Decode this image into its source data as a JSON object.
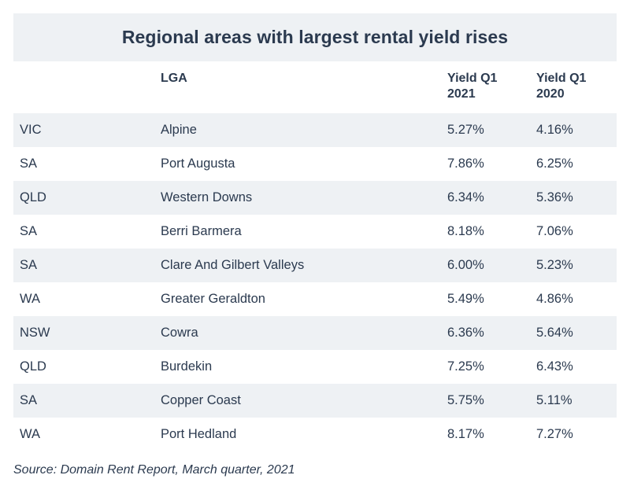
{
  "table": {
    "title": "Regional areas with largest rental yield rises",
    "headers": {
      "state": "",
      "lga": "LGA",
      "yield_2021_line1": "Yield Q1",
      "yield_2021_line2": "2021",
      "yield_2020_line1": "Yield Q1",
      "yield_2020_line2": "2020"
    },
    "rows": [
      {
        "state": "VIC",
        "lga": "Alpine",
        "yield_2021": "5.27%",
        "yield_2020": "4.16%"
      },
      {
        "state": "SA",
        "lga": "Port Augusta",
        "yield_2021": "7.86%",
        "yield_2020": "6.25%"
      },
      {
        "state": "QLD",
        "lga": "Western Downs",
        "yield_2021": "6.34%",
        "yield_2020": "5.36%"
      },
      {
        "state": "SA",
        "lga": "Berri Barmera",
        "yield_2021": "8.18%",
        "yield_2020": "7.06%"
      },
      {
        "state": "SA",
        "lga": "Clare And Gilbert Valleys",
        "yield_2021": "6.00%",
        "yield_2020": "5.23%"
      },
      {
        "state": "WA",
        "lga": "Greater Geraldton",
        "yield_2021": "5.49%",
        "yield_2020": "4.86%"
      },
      {
        "state": "NSW",
        "lga": "Cowra",
        "yield_2021": "6.36%",
        "yield_2020": "5.64%"
      },
      {
        "state": "QLD",
        "lga": "Burdekin",
        "yield_2021": "7.25%",
        "yield_2020": "6.43%"
      },
      {
        "state": "SA",
        "lga": "Copper Coast",
        "yield_2021": "5.75%",
        "yield_2020": "5.11%"
      },
      {
        "state": "WA",
        "lga": "Port Hedland",
        "yield_2021": "8.17%",
        "yield_2020": "7.27%"
      }
    ],
    "source": "Source: Domain Rent Report, March quarter, 2021"
  },
  "colors": {
    "text": "#2b3a4f",
    "shade": "#eef1f4",
    "background": "#ffffff"
  }
}
